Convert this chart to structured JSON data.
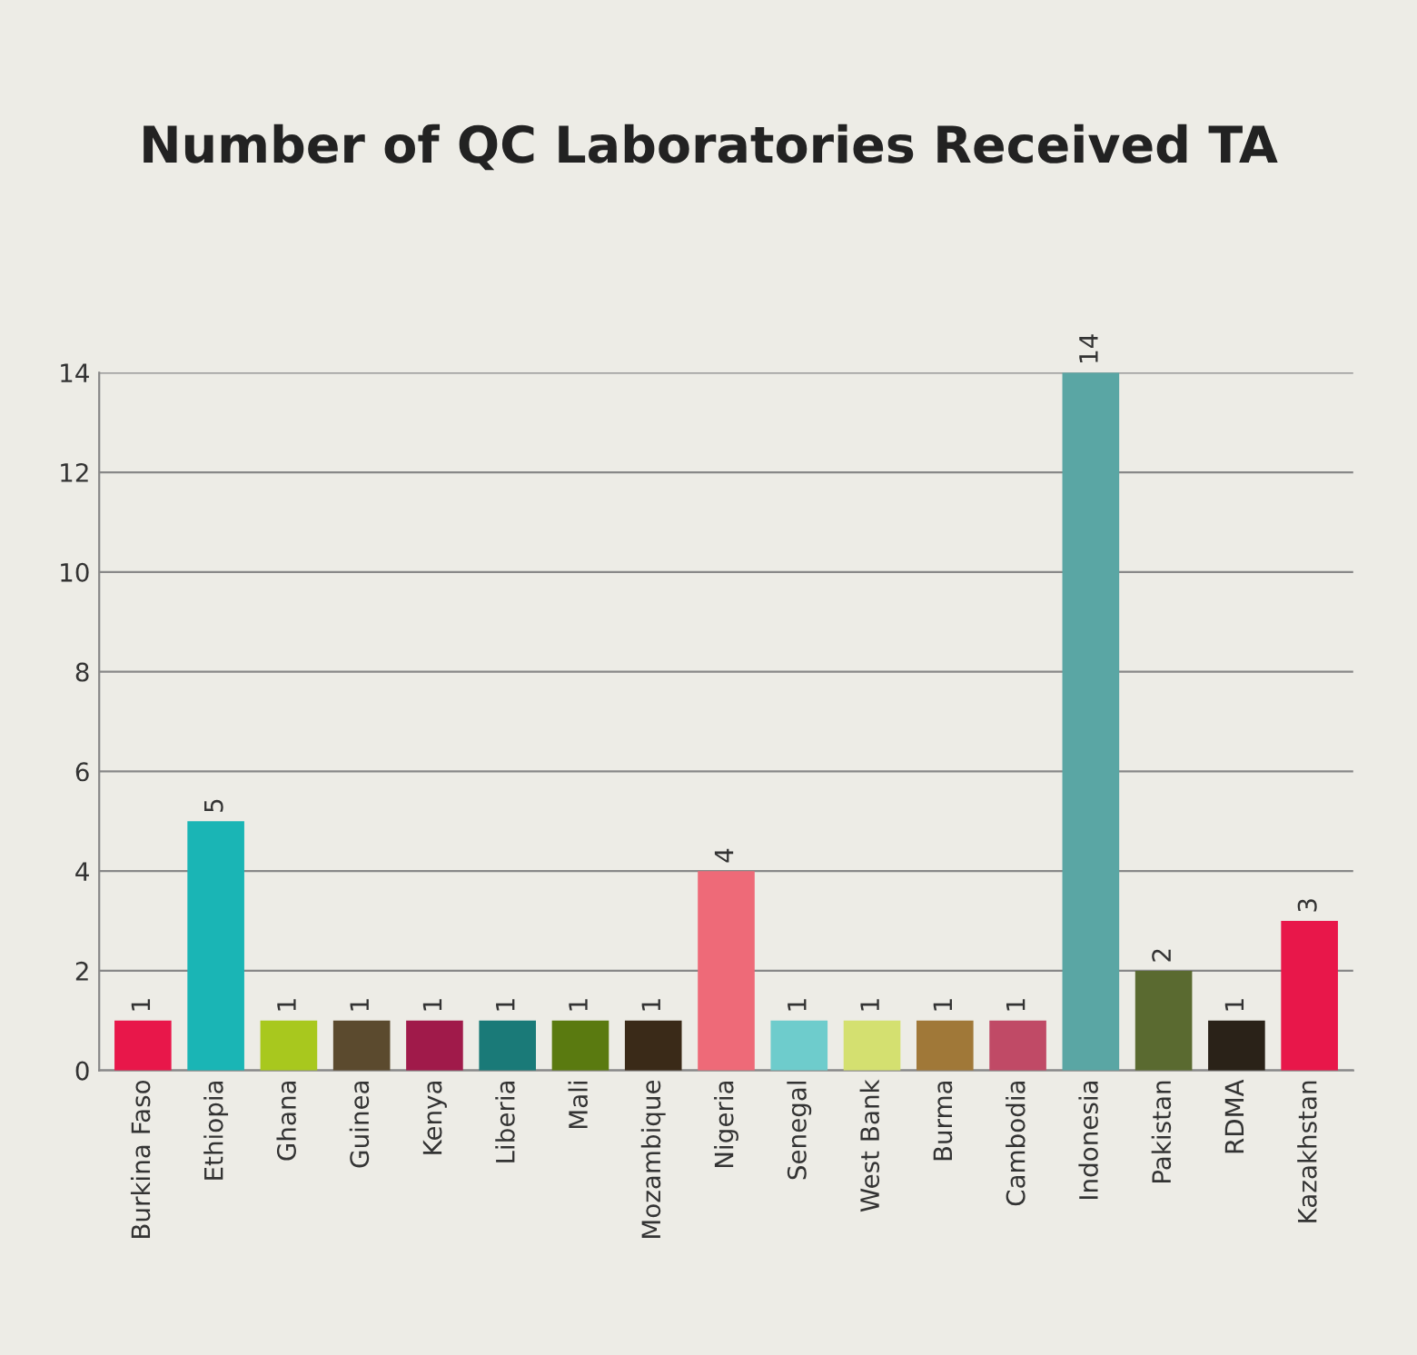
{
  "chart_data": {
    "type": "bar",
    "title": "Number of QC Laboratories Received TA",
    "categories": [
      "Burkina Faso",
      "Ethiopia",
      "Ghana",
      "Guinea",
      "Kenya",
      "Liberia",
      "Mali",
      "Mozambique",
      "Nigeria",
      "Senegal",
      "West Bank",
      "Burma",
      "Cambodia",
      "Indonesia",
      "Pakistan",
      "RDMA",
      "Kazakhstan"
    ],
    "values": [
      1,
      5,
      1,
      1,
      1,
      1,
      1,
      1,
      4,
      1,
      1,
      1,
      1,
      14,
      2,
      1,
      3
    ],
    "colors": [
      "#e8174a",
      "#1ab5b5",
      "#a8c81e",
      "#5b4a2e",
      "#a01a4a",
      "#1a7a78",
      "#5a7a10",
      "#3a2a18",
      "#ee6a78",
      "#6ecccc",
      "#d4e070",
      "#a07838",
      "#c04a66",
      "#5aa6a4",
      "#5a6a30",
      "#2a2218",
      "#e8174a"
    ],
    "ylim": [
      0,
      14
    ],
    "yticks": [
      0,
      2,
      4,
      6,
      8,
      10,
      12,
      14
    ],
    "grid": "y",
    "data_labels": true
  }
}
